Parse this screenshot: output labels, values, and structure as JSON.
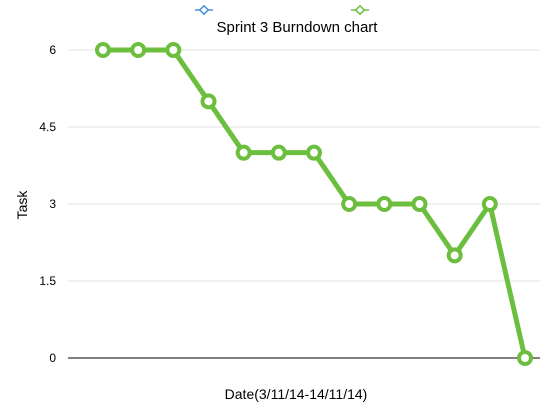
{
  "chart_data": {
    "type": "line",
    "title": "Sprint 3 Burndown chart",
    "xlabel": "Date(3/11/14-14/11/14)",
    "ylabel": "Task",
    "ylim": [
      0,
      6
    ],
    "yticks": [
      "0",
      "1.5",
      "3",
      "4.5",
      "6"
    ],
    "grid": true,
    "legend_position": "top",
    "series": [
      {
        "values": [],
        "color": "#4a90d9"
      },
      {
        "values": [
          6,
          6,
          6,
          5,
          4,
          4,
          4,
          3,
          3,
          3,
          2,
          3,
          0
        ],
        "color": "#6cbf3e"
      }
    ]
  }
}
